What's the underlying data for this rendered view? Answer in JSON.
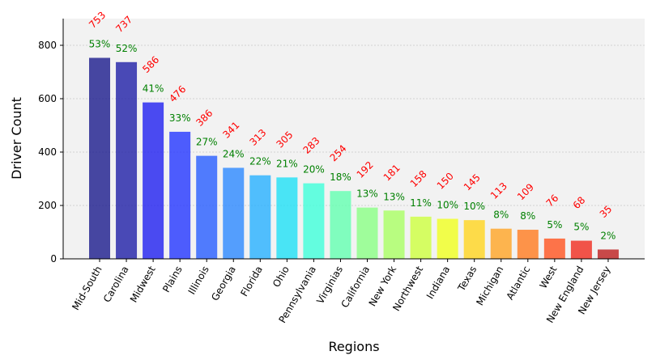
{
  "chart_data": {
    "type": "bar",
    "title": "",
    "xlabel": "Regions",
    "ylabel": "Driver Count",
    "ylim": [
      0,
      900
    ],
    "yticks": [
      0,
      200,
      400,
      600,
      800
    ],
    "grid": true,
    "categories": [
      "Mid-South",
      "Carolina",
      "Midwest",
      "Plains",
      "Illinois",
      "Georgia",
      "Florida",
      "Ohio",
      "Pennsylvania",
      "Virginias",
      "California",
      "New York",
      "Northwest",
      "Indiana",
      "Texas",
      "Michigan",
      "Atlantic",
      "West",
      "New England",
      "New Jersey"
    ],
    "values": [
      753,
      737,
      586,
      476,
      386,
      341,
      313,
      305,
      283,
      254,
      192,
      181,
      158,
      150,
      145,
      113,
      109,
      76,
      68,
      35
    ],
    "percent_labels": [
      "53%",
      "52%",
      "41%",
      "33%",
      "27%",
      "24%",
      "22%",
      "21%",
      "20%",
      "18%",
      "13%",
      "13%",
      "11%",
      "10%",
      "10%",
      "8%",
      "8%",
      "5%",
      "5%",
      "2%"
    ],
    "colors": [
      "#1a1a8c",
      "#1e1ea6",
      "#1f1ff0",
      "#2336ff",
      "#275dff",
      "#2c88ff",
      "#27b0ff",
      "#1ee0f5",
      "#3effd9",
      "#63ffb0",
      "#8aff85",
      "#a9ff63",
      "#cdff3e",
      "#f0ff1f",
      "#ffd51e",
      "#ffa424",
      "#ff7a1e",
      "#ff531e",
      "#f02a1e",
      "#bd1e1e"
    ],
    "count_label_color": "#ff0000",
    "percent_label_color": "#008000",
    "plot_background": "#f2f2f2"
  }
}
